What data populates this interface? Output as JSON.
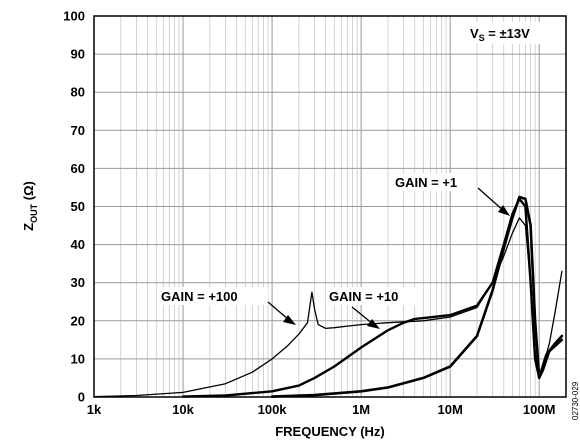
{
  "chart_data": {
    "type": "line",
    "xlabel": "FREQUENCY (Hz)",
    "ylabel": {
      "main": "Z",
      "sub": "OUT",
      "unit": " (Ω)"
    },
    "x_scale": "log",
    "xlim": [
      1000,
      200000000
    ],
    "ylim": [
      0,
      100
    ],
    "x_ticks": [
      1000,
      10000,
      100000,
      1000000,
      10000000,
      100000000
    ],
    "x_tick_labels": [
      "1k",
      "10k",
      "100k",
      "1M",
      "10M",
      "100M"
    ],
    "y_ticks": [
      0,
      10,
      20,
      30,
      40,
      50,
      60,
      70,
      80,
      90,
      100
    ],
    "y_tick_labels": [
      "0",
      "10",
      "20",
      "30",
      "40",
      "50",
      "60",
      "70",
      "80",
      "90",
      "100"
    ],
    "grid": true,
    "series": [
      {
        "name": "GAIN = +100",
        "x": [
          1000,
          3000,
          10000,
          30000,
          60000,
          100000,
          150000,
          200000,
          250000,
          280000,
          300000,
          330000,
          400000,
          500000,
          700000,
          1000000,
          2000000,
          5000000,
          10000000,
          20000000,
          30000000,
          40000000,
          50000000,
          60000000,
          70000000,
          80000000,
          90000000,
          100000000,
          110000000,
          130000000,
          150000000,
          180000000
        ],
        "y": [
          0.1,
          0.4,
          1.2,
          3.5,
          6.5,
          10,
          13.5,
          16.5,
          19.5,
          27.5,
          23,
          19,
          18,
          18.2,
          18.6,
          19,
          19.5,
          20,
          21,
          23.5,
          30,
          37,
          43,
          47,
          45,
          30,
          12,
          6,
          8,
          14,
          22,
          33
        ]
      },
      {
        "name": "GAIN = +10",
        "x": [
          10000,
          30000,
          100000,
          200000,
          300000,
          500000,
          1000000,
          2000000,
          3000000,
          4000000,
          5000000,
          10000000,
          20000000,
          30000000,
          40000000,
          50000000,
          60000000,
          70000000,
          80000000,
          90000000,
          100000000,
          110000000,
          130000000,
          180000000
        ],
        "y": [
          0.1,
          0.4,
          1.5,
          3,
          5,
          8,
          13,
          17.5,
          19.5,
          20.5,
          20.7,
          21.5,
          24,
          30,
          40,
          48,
          52,
          50,
          30,
          10,
          5,
          7,
          12,
          15
        ]
      },
      {
        "name": "GAIN = +1",
        "x": [
          100000,
          300000,
          1000000,
          2000000,
          5000000,
          10000000,
          20000000,
          30000000,
          40000000,
          50000000,
          60000000,
          70000000,
          80000000,
          90000000,
          100000000,
          120000000,
          150000000,
          180000000
        ],
        "y": [
          0.1,
          0.5,
          1.5,
          2.5,
          5,
          8,
          16,
          28,
          39,
          47,
          52.5,
          52,
          45,
          20,
          5,
          11,
          14,
          16
        ]
      }
    ],
    "annotations": [
      {
        "text": "V",
        "sub": "S",
        "rest": " = ±13V"
      },
      {
        "text": "GAIN = +1"
      },
      {
        "text": "GAIN = +10"
      },
      {
        "text": "GAIN = +100"
      }
    ],
    "figure_id": "02730-029"
  }
}
